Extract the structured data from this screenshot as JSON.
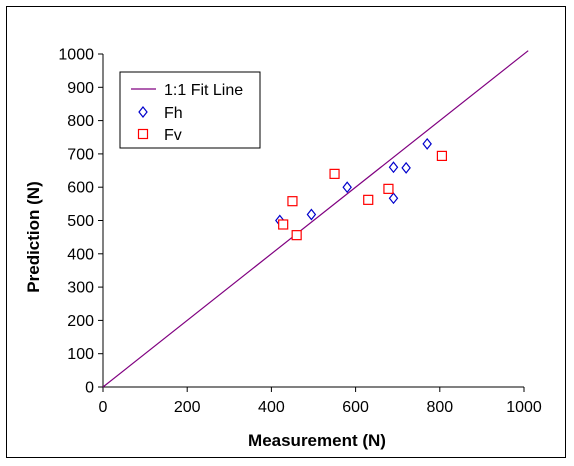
{
  "chart_data": {
    "type": "scatter",
    "xlabel": "Measurement (N)",
    "ylabel": "Prediction (N)",
    "xlim": [
      0,
      1000
    ],
    "ylim": [
      0,
      1000
    ],
    "x_ticks": [
      "0",
      "200",
      "400",
      "600",
      "800",
      "1000"
    ],
    "y_ticks": [
      "0",
      "100",
      "200",
      "300",
      "400",
      "500",
      "600",
      "700",
      "800",
      "900",
      "1000"
    ],
    "x_tick_values": [
      0,
      200,
      400,
      600,
      800,
      1000
    ],
    "y_tick_values": [
      0,
      100,
      200,
      300,
      400,
      500,
      600,
      700,
      800,
      900,
      1000
    ],
    "grid": false,
    "legend_position": "top-left",
    "fit_line": {
      "name": "1:1 Fit Line",
      "x": [
        0,
        1010
      ],
      "y": [
        0,
        1010
      ],
      "color": "#800080"
    },
    "series": [
      {
        "name": "Fh",
        "marker": "diamond",
        "color": "#0000cc",
        "points": [
          {
            "x": 420,
            "y": 500
          },
          {
            "x": 495,
            "y": 518
          },
          {
            "x": 580,
            "y": 600
          },
          {
            "x": 690,
            "y": 660
          },
          {
            "x": 690,
            "y": 567
          },
          {
            "x": 720,
            "y": 658
          },
          {
            "x": 770,
            "y": 730
          }
        ]
      },
      {
        "name": "Fv",
        "marker": "square",
        "color": "#ff0000",
        "points": [
          {
            "x": 428,
            "y": 488
          },
          {
            "x": 450,
            "y": 558
          },
          {
            "x": 460,
            "y": 456
          },
          {
            "x": 550,
            "y": 640
          },
          {
            "x": 630,
            "y": 562
          },
          {
            "x": 678,
            "y": 595
          },
          {
            "x": 805,
            "y": 694
          }
        ]
      }
    ]
  }
}
